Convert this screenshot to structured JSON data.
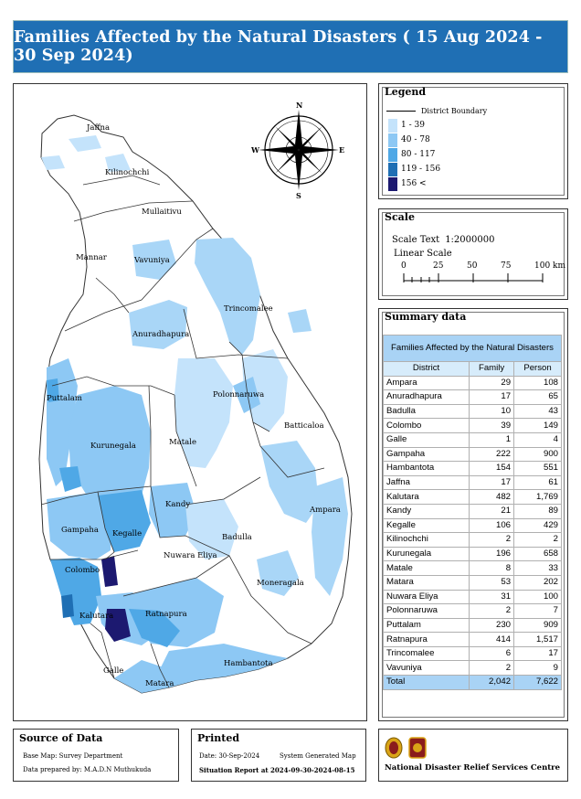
{
  "title": "Families Affected by the Natural Disasters ( 15 Aug 2024 - 30 Sep 2024)",
  "map": {
    "district_labels": {
      "jaffna": "Jaffna",
      "kilinochchi": "Kilinochchi",
      "mullaitivu": "Mullaitivu",
      "mannar": "Mannar",
      "vavuniya": "Vavuniya",
      "trincomalee": "Trincomalee",
      "anuradhapura": "Anuradhapura",
      "puttalam": "Puttalam",
      "polonnaruwa": "Polonnaruwa",
      "batticaloa": "Batticaloa",
      "kurunegala": "Kurunegala",
      "matale": "Matale",
      "kandy": "Kandy",
      "ampara": "Ampara",
      "gampaha": "Gampaha",
      "kegalle": "Kegalle",
      "badulla": "Badulla",
      "nuwara_eliya": "Nuwara Eliya",
      "colombo": "Colombo",
      "moneragala": "Moneragala",
      "kalutara": "Kalutara",
      "ratnapura": "Ratnapura",
      "hambantota": "Hambantota",
      "galle": "Galle",
      "matara": "Matara"
    },
    "compass": {
      "n": "N",
      "s": "S",
      "e": "E",
      "w": "W"
    },
    "colors": {
      "class1": "#c4e3fb",
      "class2": "#8dc8f4",
      "class3": "#4fa8e6",
      "class4": "#1f6fb4",
      "class5": "#1c1970",
      "outline": "#333333"
    }
  },
  "legend": {
    "title": "Legend",
    "boundary_label": "District Boundary",
    "items": [
      {
        "label": "1 - 39",
        "color": "#c4e3fb"
      },
      {
        "label": "40 - 78",
        "color": "#8dc8f4"
      },
      {
        "label": "80 - 117",
        "color": "#4fa8e6"
      },
      {
        "label": "119 - 156",
        "color": "#1f6fb4"
      },
      {
        "label": "156 <",
        "color": "#1c1970"
      }
    ]
  },
  "scale": {
    "title": "Scale",
    "scale_text_label": "Scale Text",
    "scale_text_value": "1:2000000",
    "linear_label": "Linear Scale",
    "ticks": [
      "0",
      "25",
      "50",
      "75",
      "100 km"
    ]
  },
  "summary": {
    "title": "Summary data",
    "table_title": "Families Affected by the Natural Disasters",
    "columns": [
      "District",
      "Family",
      "Person"
    ],
    "rows": [
      [
        "Ampara",
        "29",
        "108"
      ],
      [
        "Anuradhapura",
        "17",
        "65"
      ],
      [
        "Badulla",
        "10",
        "43"
      ],
      [
        "Colombo",
        "39",
        "149"
      ],
      [
        "Galle",
        "1",
        "4"
      ],
      [
        "Gampaha",
        "222",
        "900"
      ],
      [
        "Hambantota",
        "154",
        "551"
      ],
      [
        "Jaffna",
        "17",
        "61"
      ],
      [
        "Kalutara",
        "482",
        "1,769"
      ],
      [
        "Kandy",
        "21",
        "89"
      ],
      [
        "Kegalle",
        "106",
        "429"
      ],
      [
        "Kilinochchi",
        "2",
        "2"
      ],
      [
        "Kurunegala",
        "196",
        "658"
      ],
      [
        "Matale",
        "8",
        "33"
      ],
      [
        "Matara",
        "53",
        "202"
      ],
      [
        "Nuwara Eliya",
        "31",
        "100"
      ],
      [
        "Polonnaruwa",
        "2",
        "7"
      ],
      [
        "Puttalam",
        "230",
        "909"
      ],
      [
        "Ratnapura",
        "414",
        "1,517"
      ],
      [
        "Trincomalee",
        "6",
        "17"
      ],
      [
        "Vavuniya",
        "2",
        "9"
      ]
    ],
    "total": [
      "Total",
      "2,042",
      "7,622"
    ]
  },
  "source": {
    "title": "Source of Data",
    "base_map": "Base Map: Survey Department",
    "prepared_by": "Data prepared by: M.A.D.N Muthukuda"
  },
  "printed": {
    "title": "Printed",
    "date": "Date: 30-Sep-2024",
    "system": "System Generated Map",
    "report": "Situation Report at 2024-09-30-2024-08-15"
  },
  "org": {
    "name": "National Disaster Relief Services Centre"
  }
}
